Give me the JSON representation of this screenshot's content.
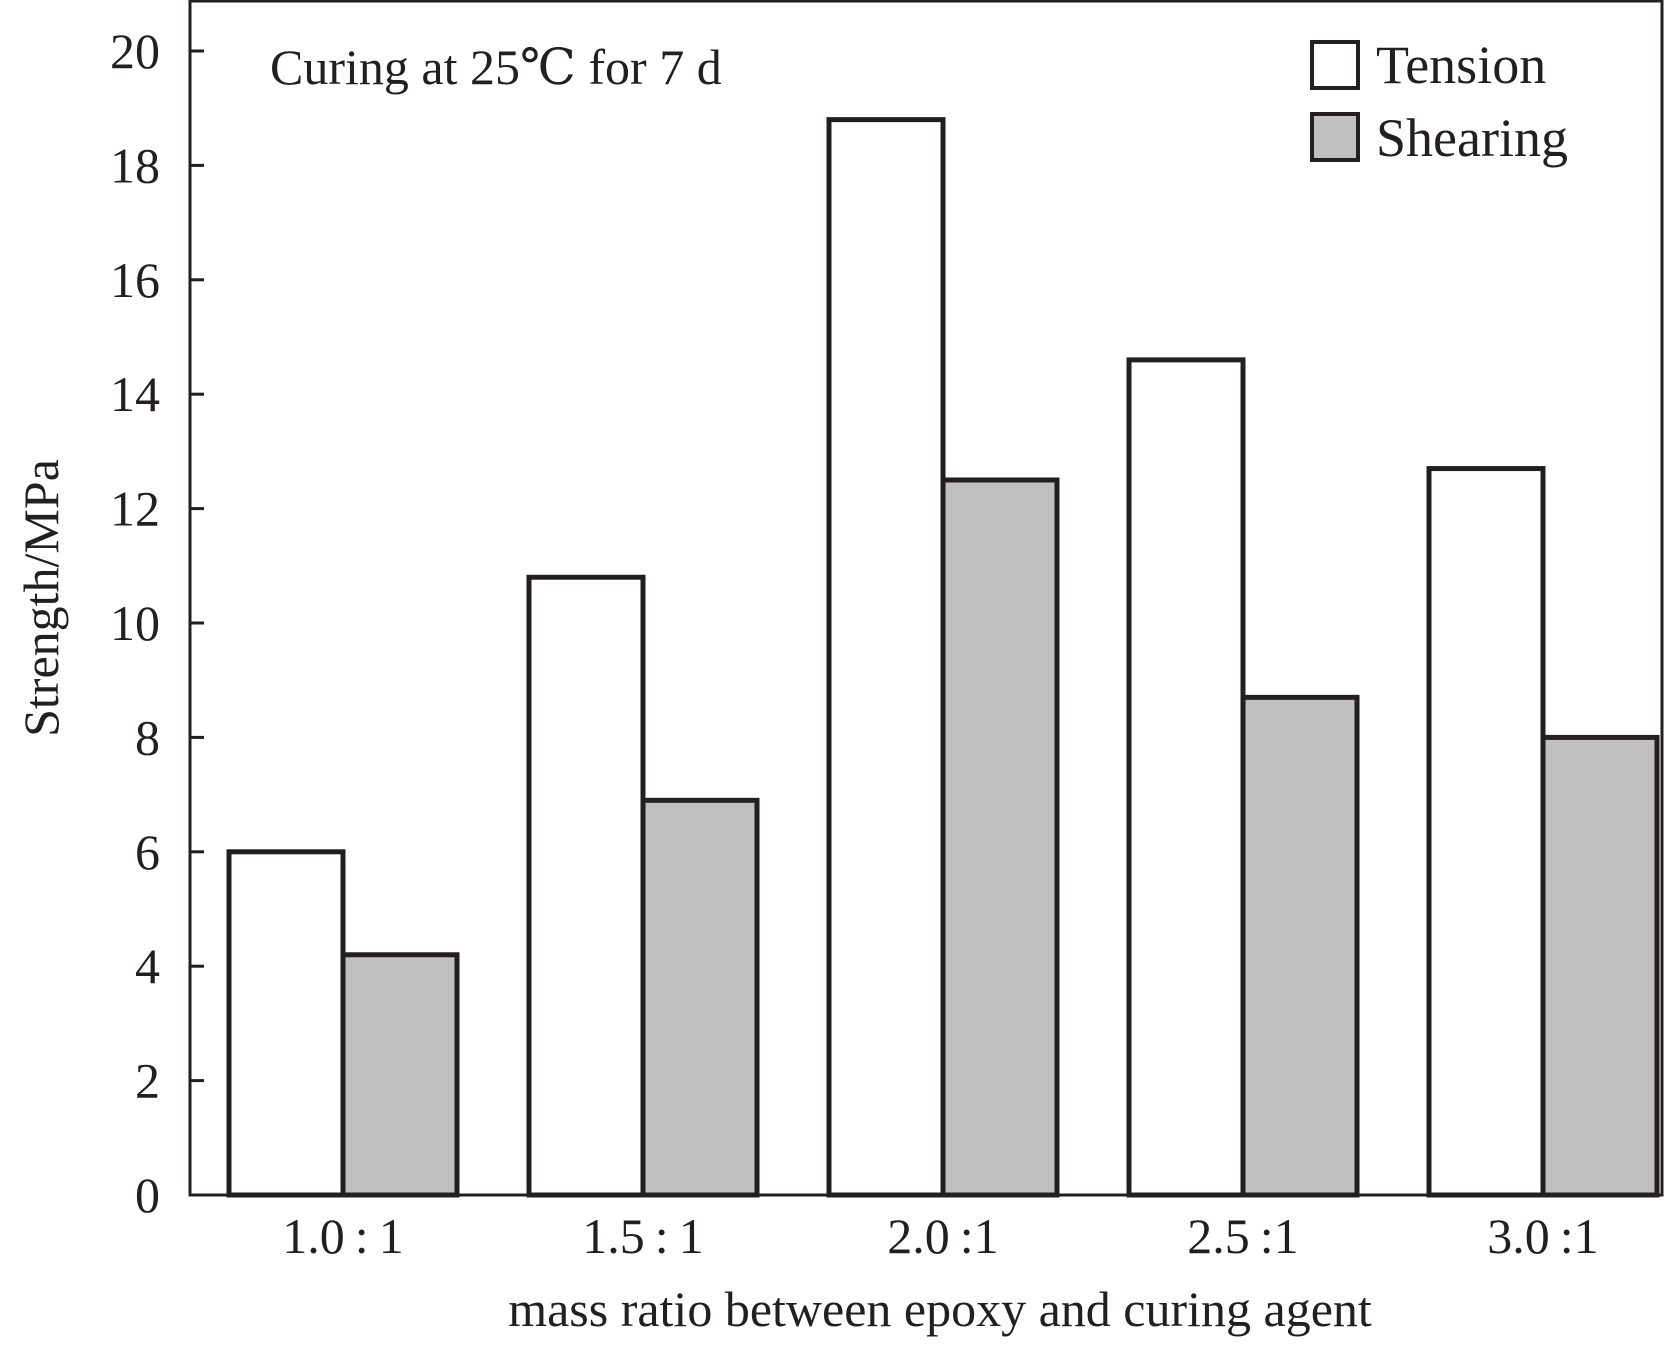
{
  "chart_data": {
    "type": "bar",
    "categories": [
      "1.0 : 1",
      "1.5 : 1",
      "2.0 :1",
      "2.5 :1",
      "3.0 :1"
    ],
    "series": [
      {
        "name": "Tension",
        "values": [
          6.0,
          10.8,
          18.8,
          14.6,
          12.7
        ],
        "color": "#ffffff"
      },
      {
        "name": "Shearing",
        "values": [
          4.2,
          6.9,
          12.5,
          8.7,
          8.0
        ],
        "color": "#c0c0c0"
      }
    ],
    "title": "",
    "annotation": "Curing at 25℃ for 7 d",
    "xlabel": "mass ratio between epoxy and curing agent",
    "ylabel": "Strength/MPa",
    "ylim": [
      0,
      20
    ],
    "yticks": [
      0,
      2,
      4,
      6,
      8,
      10,
      12,
      14,
      16,
      18,
      20
    ],
    "grid": false,
    "legend_position": "top-right",
    "colors": {
      "stroke": "#231f20",
      "background": "#ffffff"
    }
  }
}
